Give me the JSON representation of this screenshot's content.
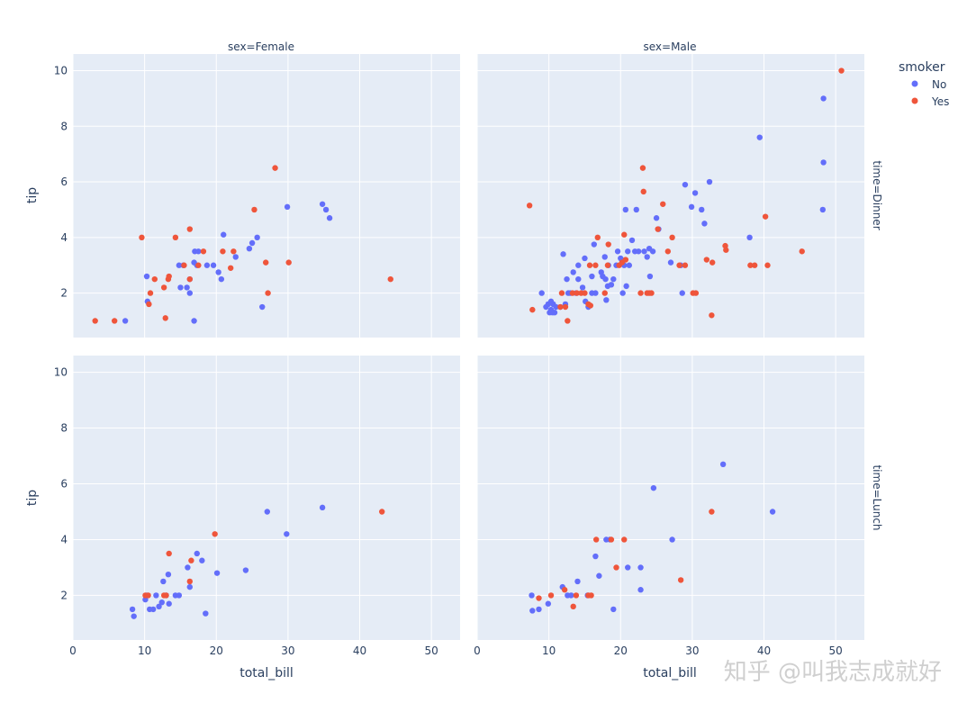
{
  "watermark": "知乎 @叫我志成就好",
  "chart_data": {
    "type": "scatter",
    "legend": {
      "title": "smoker",
      "placement": "top-right",
      "entries": [
        {
          "name": "No",
          "color": "#636efa"
        },
        {
          "name": "Yes",
          "color": "#ef553b"
        }
      ]
    },
    "xlabel": "total_bill",
    "ylabel": "tip",
    "xlim": [
      0,
      54
    ],
    "ylim": [
      0.4,
      10.6
    ],
    "xticks": [
      0,
      10,
      20,
      30,
      40,
      50
    ],
    "yticks": [
      2,
      4,
      6,
      8,
      10
    ],
    "grid": true,
    "col_facet_labels": [
      "sex=Female",
      "sex=Male"
    ],
    "row_facet_labels": [
      "time=Dinner",
      "time=Lunch"
    ],
    "panels": [
      {
        "col_label": "sex=Female",
        "row_label": "time=Dinner",
        "series": [
          {
            "name": "No",
            "points": [
              [
                7.3,
                1
              ],
              [
                10.3,
                2.6
              ],
              [
                10.4,
                1.7
              ],
              [
                14.8,
                3.0
              ],
              [
                15.0,
                2.2
              ],
              [
                15.4,
                3.0
              ],
              [
                15.9,
                2.2
              ],
              [
                16.3,
                2.5
              ],
              [
                16.3,
                2.0
              ],
              [
                16.9,
                3.1
              ],
              [
                17.0,
                3.5
              ],
              [
                17.3,
                3.0
              ],
              [
                17.5,
                3.5
              ],
              [
                18.7,
                3.0
              ],
              [
                19.6,
                3.0
              ],
              [
                20.3,
                2.75
              ],
              [
                20.7,
                2.5
              ],
              [
                21.0,
                4.1
              ],
              [
                22.7,
                3.3
              ],
              [
                24.6,
                3.6
              ],
              [
                25.0,
                3.8
              ],
              [
                25.7,
                4.0
              ],
              [
                26.4,
                1.5
              ],
              [
                29.9,
                5.1
              ],
              [
                34.8,
                5.2
              ],
              [
                35.3,
                5.0
              ],
              [
                35.8,
                4.7
              ],
              [
                16.9,
                1.0
              ]
            ]
          },
          {
            "name": "Yes",
            "points": [
              [
                3.1,
                1
              ],
              [
                5.8,
                1
              ],
              [
                9.6,
                4
              ],
              [
                10.6,
                1.6
              ],
              [
                10.8,
                2.0
              ],
              [
                11.4,
                2.5
              ],
              [
                12.7,
                2.2
              ],
              [
                12.9,
                1.1
              ],
              [
                13.3,
                2.5
              ],
              [
                13.4,
                2.6
              ],
              [
                14.3,
                4.0
              ],
              [
                15.5,
                3.0
              ],
              [
                16.3,
                4.3
              ],
              [
                17.5,
                3.0
              ],
              [
                18.2,
                3.5
              ],
              [
                20.9,
                3.5
              ],
              [
                22.0,
                2.9
              ],
              [
                22.4,
                3.5
              ],
              [
                25.3,
                5.0
              ],
              [
                26.9,
                3.1
              ],
              [
                27.2,
                2.0
              ],
              [
                28.2,
                6.5
              ],
              [
                30.1,
                3.1
              ],
              [
                44.3,
                2.5
              ],
              [
                16.3,
                2.5
              ]
            ]
          }
        ]
      },
      {
        "col_label": "sex=Male",
        "row_label": "time=Dinner",
        "series": [
          {
            "name": "No",
            "points": [
              [
                9.0,
                2.0
              ],
              [
                9.6,
                1.5
              ],
              [
                9.9,
                1.6
              ],
              [
                10.1,
                1.3
              ],
              [
                10.3,
                1.7
              ],
              [
                10.3,
                1.4
              ],
              [
                10.5,
                1.3
              ],
              [
                10.6,
                1.6
              ],
              [
                10.8,
                1.3
              ],
              [
                11.0,
                1.5
              ],
              [
                11.6,
                1.5
              ],
              [
                12.0,
                3.4
              ],
              [
                12.3,
                1.6
              ],
              [
                12.5,
                2.5
              ],
              [
                12.7,
                2.0
              ],
              [
                13.0,
                2.0
              ],
              [
                13.4,
                2.75
              ],
              [
                13.8,
                2.0
              ],
              [
                14.1,
                3.0
              ],
              [
                14.1,
                2.5
              ],
              [
                14.7,
                2.2
              ],
              [
                15.0,
                3.25
              ],
              [
                15.1,
                1.7
              ],
              [
                15.5,
                1.5
              ],
              [
                16.0,
                2.0
              ],
              [
                16.0,
                2.6
              ],
              [
                16.3,
                3.75
              ],
              [
                16.5,
                2.0
              ],
              [
                17.3,
                2.75
              ],
              [
                17.5,
                2.6
              ],
              [
                17.8,
                3.3
              ],
              [
                17.9,
                2.5
              ],
              [
                18.0,
                1.75
              ],
              [
                18.2,
                2.25
              ],
              [
                18.3,
                3.0
              ],
              [
                18.7,
                2.3
              ],
              [
                19.0,
                2.5
              ],
              [
                19.4,
                3.0
              ],
              [
                19.6,
                3.5
              ],
              [
                20.0,
                3.25
              ],
              [
                20.3,
                2.0
              ],
              [
                20.5,
                3.0
              ],
              [
                20.7,
                5.0
              ],
              [
                20.8,
                2.25
              ],
              [
                21.0,
                3.5
              ],
              [
                21.2,
                3.0
              ],
              [
                21.6,
                3.9
              ],
              [
                22.0,
                3.5
              ],
              [
                22.2,
                5.0
              ],
              [
                22.5,
                3.5
              ],
              [
                23.3,
                3.5
              ],
              [
                23.7,
                3.3
              ],
              [
                24.0,
                3.6
              ],
              [
                24.1,
                2.6
              ],
              [
                24.5,
                3.5
              ],
              [
                25.0,
                4.7
              ],
              [
                25.3,
                4.3
              ],
              [
                27.0,
                3.1
              ],
              [
                28.4,
                3.0
              ],
              [
                28.6,
                2.0
              ],
              [
                29.0,
                5.9
              ],
              [
                29.9,
                5.1
              ],
              [
                30.4,
                5.6
              ],
              [
                31.3,
                5.0
              ],
              [
                31.7,
                4.5
              ],
              [
                32.4,
                6.0
              ],
              [
                38.0,
                4.0
              ],
              [
                39.4,
                7.6
              ],
              [
                48.2,
                5.0
              ],
              [
                48.3,
                6.7
              ],
              [
                48.3,
                9.0
              ]
            ]
          },
          {
            "name": "Yes",
            "points": [
              [
                7.3,
                5.15
              ],
              [
                7.7,
                1.4
              ],
              [
                11.6,
                1.5
              ],
              [
                11.8,
                2.0
              ],
              [
                12.3,
                1.5
              ],
              [
                12.6,
                1.0
              ],
              [
                13.3,
                2.0
              ],
              [
                13.9,
                2.0
              ],
              [
                14.5,
                2.0
              ],
              [
                15.0,
                2.0
              ],
              [
                15.5,
                1.6
              ],
              [
                15.7,
                3.0
              ],
              [
                15.8,
                1.55
              ],
              [
                16.5,
                3.0
              ],
              [
                16.8,
                4.0
              ],
              [
                17.8,
                2.0
              ],
              [
                18.2,
                3.0
              ],
              [
                18.3,
                3.75
              ],
              [
                19.8,
                3.0
              ],
              [
                20.2,
                3.1
              ],
              [
                20.5,
                4.1
              ],
              [
                20.7,
                3.2
              ],
              [
                22.8,
                2.0
              ],
              [
                23.1,
                6.5
              ],
              [
                23.2,
                5.65
              ],
              [
                23.7,
                2.0
              ],
              [
                24.0,
                2.0
              ],
              [
                24.3,
                2.0
              ],
              [
                25.2,
                4.3
              ],
              [
                25.9,
                5.2
              ],
              [
                26.6,
                3.5
              ],
              [
                27.2,
                4.0
              ],
              [
                28.2,
                3.0
              ],
              [
                29.0,
                3.0
              ],
              [
                30.1,
                2.0
              ],
              [
                30.5,
                2.0
              ],
              [
                32.0,
                3.2
              ],
              [
                32.7,
                1.2
              ],
              [
                32.8,
                3.1
              ],
              [
                34.6,
                3.7
              ],
              [
                34.7,
                3.55
              ],
              [
                38.1,
                3.0
              ],
              [
                38.7,
                3.0
              ],
              [
                40.2,
                4.75
              ],
              [
                40.5,
                3.0
              ],
              [
                45.3,
                3.5
              ],
              [
                50.8,
                10.0
              ]
            ]
          }
        ]
      },
      {
        "col_label": "sex=Female",
        "row_label": "time=Lunch",
        "series": [
          {
            "name": "No",
            "points": [
              [
                8.3,
                1.5
              ],
              [
                8.5,
                1.25
              ],
              [
                10.1,
                1.85
              ],
              [
                10.3,
                2.0
              ],
              [
                10.7,
                1.5
              ],
              [
                11.2,
                1.5
              ],
              [
                11.6,
                2.0
              ],
              [
                12.0,
                1.6
              ],
              [
                12.4,
                1.75
              ],
              [
                12.6,
                2.5
              ],
              [
                13.0,
                2.0
              ],
              [
                13.4,
                1.7
              ],
              [
                13.3,
                2.75
              ],
              [
                14.3,
                2.0
              ],
              [
                14.8,
                2.0
              ],
              [
                16.0,
                3.0
              ],
              [
                16.3,
                2.3
              ],
              [
                17.3,
                3.5
              ],
              [
                18.0,
                3.25
              ],
              [
                18.5,
                1.35
              ],
              [
                20.1,
                2.8
              ],
              [
                24.1,
                2.9
              ],
              [
                27.1,
                5.0
              ],
              [
                29.8,
                4.2
              ],
              [
                34.8,
                5.15
              ]
            ]
          },
          {
            "name": "Yes",
            "points": [
              [
                10.1,
                2.0
              ],
              [
                10.5,
                2.0
              ],
              [
                12.7,
                2.0
              ],
              [
                13.0,
                2.0
              ],
              [
                13.4,
                3.5
              ],
              [
                16.3,
                2.5
              ],
              [
                16.5,
                3.25
              ],
              [
                19.8,
                4.2
              ],
              [
                43.1,
                5.0
              ]
            ]
          }
        ]
      },
      {
        "col_label": "sex=Male",
        "row_label": "time=Lunch",
        "series": [
          {
            "name": "No",
            "points": [
              [
                7.6,
                2.0
              ],
              [
                7.7,
                1.45
              ],
              [
                8.6,
                1.5
              ],
              [
                9.9,
                1.7
              ],
              [
                11.9,
                2.3
              ],
              [
                12.6,
                2.0
              ],
              [
                13.1,
                2.0
              ],
              [
                14.0,
                2.5
              ],
              [
                15.4,
                2.0
              ],
              [
                16.5,
                3.4
              ],
              [
                17.0,
                2.7
              ],
              [
                18.0,
                4.0
              ],
              [
                18.5,
                4.0
              ],
              [
                19.0,
                1.5
              ],
              [
                21.0,
                3.0
              ],
              [
                22.8,
                2.2
              ],
              [
                22.8,
                3.0
              ],
              [
                24.6,
                5.85
              ],
              [
                27.2,
                4.0
              ],
              [
                34.3,
                6.7
              ],
              [
                41.2,
                5.0
              ]
            ]
          },
          {
            "name": "Yes",
            "points": [
              [
                8.6,
                1.9
              ],
              [
                10.3,
                2.0
              ],
              [
                12.2,
                2.2
              ],
              [
                13.4,
                1.6
              ],
              [
                13.8,
                2.0
              ],
              [
                15.5,
                2.0
              ],
              [
                15.9,
                2.0
              ],
              [
                16.6,
                4.0
              ],
              [
                18.7,
                4.0
              ],
              [
                19.4,
                3.0
              ],
              [
                20.5,
                4.0
              ],
              [
                28.4,
                2.55
              ],
              [
                32.7,
                5.0
              ]
            ]
          }
        ]
      }
    ]
  }
}
